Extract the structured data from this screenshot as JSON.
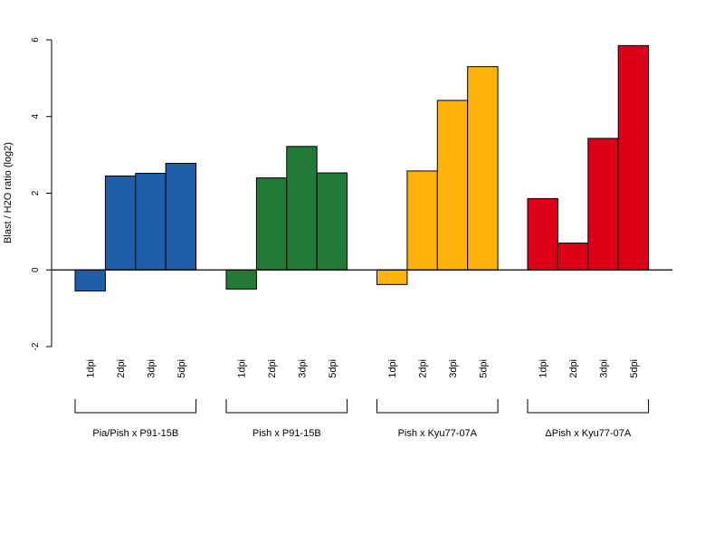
{
  "chart_data": {
    "type": "bar",
    "title": "",
    "xlabel": "",
    "ylabel": "Blast / H2O ratio (log2)",
    "ylim": [
      -2,
      6
    ],
    "yticks": [
      -2,
      0,
      2,
      4,
      6
    ],
    "grid": false,
    "legend": "none",
    "categories": [
      "1dpi",
      "2dpi",
      "3dpi",
      "5dpi"
    ],
    "series": [
      {
        "name": "Pia/Pish x P91-15B",
        "color": "#1f5fa8",
        "values": [
          -0.55,
          2.45,
          2.52,
          2.78
        ]
      },
      {
        "name": "Pish x P91-15B",
        "color": "#217a35",
        "values": [
          -0.5,
          2.4,
          3.22,
          2.53
        ]
      },
      {
        "name": "Pish x Kyu77-07A",
        "color": "#ffb30a",
        "values": [
          -0.38,
          2.58,
          4.42,
          5.3
        ]
      },
      {
        "name": "ΔPish x Kyu77-07A",
        "color": "#db0018",
        "values": [
          1.86,
          0.7,
          3.43,
          5.85
        ]
      }
    ]
  }
}
